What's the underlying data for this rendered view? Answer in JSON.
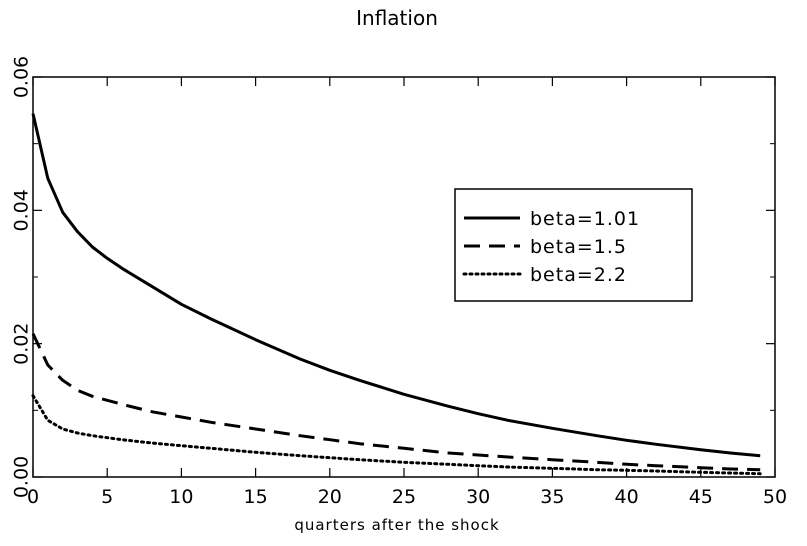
{
  "chart_data": {
    "type": "line",
    "title": "Inflation",
    "xlabel": "quarters after the shock",
    "ylabel": "",
    "xlim": [
      0,
      50
    ],
    "ylim": [
      0,
      0.06
    ],
    "x_ticks": [
      0,
      5,
      10,
      15,
      20,
      25,
      30,
      35,
      40,
      45,
      50
    ],
    "y_ticks": [
      0.0,
      0.02,
      0.04,
      0.06
    ],
    "y_tick_labels": [
      "0.00",
      "0.02",
      "0.04",
      "0.06"
    ],
    "y_minor_ticks": [
      0.01,
      0.03,
      0.05
    ],
    "grid": false,
    "legend_position": "center-right",
    "x": [
      0,
      1,
      2,
      3,
      4,
      5,
      6,
      8,
      10,
      12,
      15,
      18,
      20,
      22,
      25,
      28,
      30,
      32,
      35,
      38,
      40,
      42,
      45,
      47,
      49
    ],
    "series": [
      {
        "name": "beta=1.01",
        "style": "solid",
        "values": [
          0.0545,
          0.0448,
          0.0397,
          0.0368,
          0.0345,
          0.0328,
          0.0313,
          0.0286,
          0.0259,
          0.0237,
          0.0206,
          0.0177,
          0.016,
          0.0145,
          0.0124,
          0.0106,
          0.0095,
          0.0085,
          0.0073,
          0.0062,
          0.0055,
          0.0049,
          0.0041,
          0.0036,
          0.0032
        ]
      },
      {
        "name": "beta=1.5",
        "style": "dashed",
        "values": [
          0.0215,
          0.0168,
          0.0145,
          0.013,
          0.0121,
          0.0115,
          0.0109,
          0.0098,
          0.009,
          0.0082,
          0.0072,
          0.0062,
          0.0056,
          0.005,
          0.0043,
          0.0036,
          0.0033,
          0.003,
          0.0026,
          0.0022,
          0.0019,
          0.0017,
          0.0014,
          0.0012,
          0.0011
        ]
      },
      {
        "name": "beta=2.2",
        "style": "dotted",
        "values": [
          0.0122,
          0.0085,
          0.0072,
          0.0066,
          0.0062,
          0.0059,
          0.0056,
          0.0051,
          0.0047,
          0.0043,
          0.0037,
          0.0032,
          0.0029,
          0.0026,
          0.0022,
          0.0019,
          0.0017,
          0.0015,
          0.0013,
          0.0011,
          0.001,
          0.0009,
          0.0007,
          0.0006,
          0.0005
        ]
      }
    ]
  }
}
